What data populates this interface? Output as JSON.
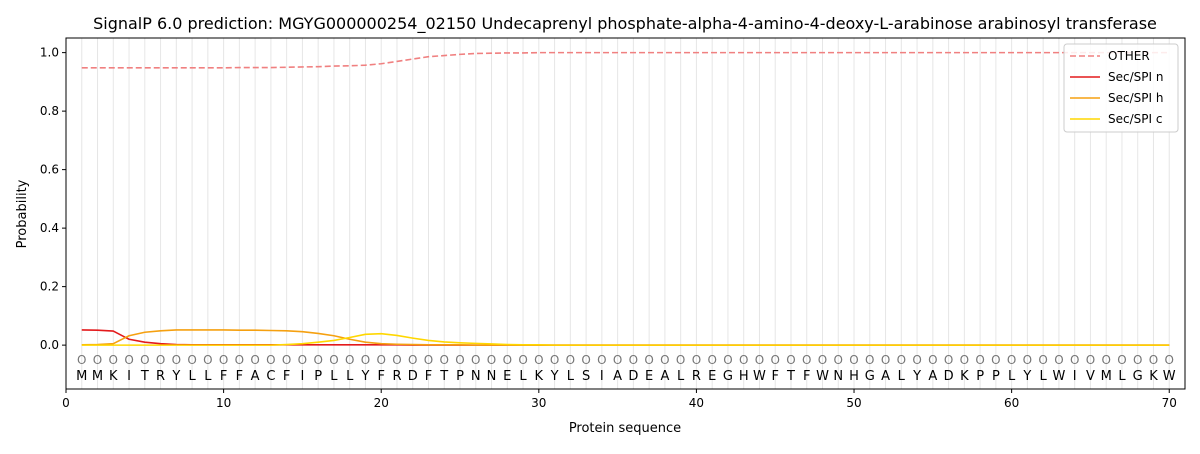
{
  "chart_data": {
    "type": "line",
    "title": "SignalP 6.0 prediction: MGYG000000254_02150 Undecaprenyl phosphate-alpha-4-amino-4-deoxy-L-arabinose arabinosyl transferase",
    "xlabel": "Protein sequence",
    "ylabel": "Probability",
    "xlim": [
      0,
      71
    ],
    "ylim": [
      -0.15,
      1.05
    ],
    "xticks": [
      0,
      10,
      20,
      30,
      40,
      50,
      60,
      70
    ],
    "yticks": [
      0.0,
      0.2,
      0.4,
      0.6,
      0.8,
      1.0
    ],
    "ytick_labels": [
      "0.0",
      "0.2",
      "0.4",
      "0.6",
      "0.8",
      "1.0"
    ],
    "grid": "vertical lines at each residue",
    "legend_position": "top-right",
    "sequence": "MMKITRYLLFFACFIPLLYFRDFTPNNELKYLSIADEALREGHWFTFWNHGALYADKPPLYLWIVMLGKW",
    "region_marker": "O",
    "x": [
      1,
      2,
      3,
      4,
      5,
      6,
      7,
      8,
      9,
      10,
      11,
      12,
      13,
      14,
      15,
      16,
      17,
      18,
      19,
      20,
      21,
      22,
      23,
      24,
      25,
      26,
      27,
      28,
      29,
      30,
      31,
      32,
      33,
      34,
      35,
      36,
      37,
      38,
      39,
      40,
      41,
      42,
      43,
      44,
      45,
      46,
      47,
      48,
      49,
      50,
      51,
      52,
      53,
      54,
      55,
      56,
      57,
      58,
      59,
      60,
      61,
      62,
      63,
      64,
      65,
      66,
      67,
      68,
      69,
      70
    ],
    "series": [
      {
        "name": "OTHER",
        "color": "#f08080",
        "dash": "dashed",
        "values": [
          0.948,
          0.948,
          0.948,
          0.948,
          0.948,
          0.948,
          0.948,
          0.948,
          0.948,
          0.948,
          0.949,
          0.949,
          0.949,
          0.95,
          0.951,
          0.952,
          0.954,
          0.955,
          0.957,
          0.962,
          0.97,
          0.978,
          0.986,
          0.99,
          0.994,
          0.997,
          0.998,
          0.999,
          0.999,
          1.0,
          1.0,
          1.0,
          1.0,
          1.0,
          1.0,
          1.0,
          1.0,
          1.0,
          1.0,
          1.0,
          1.0,
          1.0,
          1.0,
          1.0,
          1.0,
          1.0,
          1.0,
          1.0,
          1.0,
          1.0,
          1.0,
          1.0,
          1.0,
          1.0,
          1.0,
          1.0,
          1.0,
          1.0,
          1.0,
          1.0,
          1.0,
          1.0,
          1.0,
          1.0,
          1.0,
          1.0,
          1.0,
          1.0,
          1.0,
          1.0
        ]
      },
      {
        "name": "Sec/SPI n",
        "color": "#e31a1c",
        "dash": "solid",
        "values": [
          0.052,
          0.051,
          0.048,
          0.02,
          0.01,
          0.005,
          0.002,
          0.001,
          0.001,
          0.001,
          0.001,
          0.001,
          0.001,
          0.001,
          0.001,
          0.001,
          0.001,
          0.001,
          0.001,
          0.001,
          0.001,
          0.0,
          0.0,
          0.0,
          0.0,
          0.0,
          0.0,
          0.0,
          0.0,
          0.0,
          0.0,
          0.0,
          0.0,
          0.0,
          0.0,
          0.0,
          0.0,
          0.0,
          0.0,
          0.0,
          0.0,
          0.0,
          0.0,
          0.0,
          0.0,
          0.0,
          0.0,
          0.0,
          0.0,
          0.0,
          0.0,
          0.0,
          0.0,
          0.0,
          0.0,
          0.0,
          0.0,
          0.0,
          0.0,
          0.0,
          0.0,
          0.0,
          0.0,
          0.0,
          0.0,
          0.0,
          0.0,
          0.0,
          0.0,
          0.0
        ]
      },
      {
        "name": "Sec/SPI h",
        "color": "#f5a010",
        "dash": "solid",
        "values": [
          0.001,
          0.002,
          0.005,
          0.032,
          0.044,
          0.049,
          0.052,
          0.052,
          0.052,
          0.052,
          0.051,
          0.051,
          0.05,
          0.049,
          0.046,
          0.04,
          0.032,
          0.02,
          0.01,
          0.005,
          0.003,
          0.002,
          0.001,
          0.001,
          0.001,
          0.0,
          0.0,
          0.0,
          0.0,
          0.0,
          0.0,
          0.0,
          0.0,
          0.0,
          0.0,
          0.0,
          0.0,
          0.0,
          0.0,
          0.0,
          0.0,
          0.0,
          0.0,
          0.0,
          0.0,
          0.0,
          0.0,
          0.0,
          0.0,
          0.0,
          0.0,
          0.0,
          0.0,
          0.0,
          0.0,
          0.0,
          0.0,
          0.0,
          0.0,
          0.0,
          0.0,
          0.0,
          0.0,
          0.0,
          0.0,
          0.0,
          0.0,
          0.0,
          0.0,
          0.0
        ]
      },
      {
        "name": "Sec/SPI c",
        "color": "#ffd700",
        "dash": "solid",
        "values": [
          0.0,
          0.0,
          0.0,
          0.0,
          0.0,
          0.0,
          0.0,
          0.0,
          0.0,
          0.0,
          0.0,
          0.0,
          0.0,
          0.002,
          0.005,
          0.01,
          0.016,
          0.026,
          0.037,
          0.039,
          0.033,
          0.024,
          0.016,
          0.011,
          0.008,
          0.006,
          0.004,
          0.002,
          0.001,
          0.001,
          0.0,
          0.0,
          0.0,
          0.0,
          0.0,
          0.0,
          0.0,
          0.0,
          0.0,
          0.0,
          0.0,
          0.0,
          0.0,
          0.0,
          0.0,
          0.0,
          0.0,
          0.0,
          0.0,
          0.0,
          0.0,
          0.0,
          0.0,
          0.0,
          0.0,
          0.0,
          0.0,
          0.0,
          0.0,
          0.0,
          0.0,
          0.0,
          0.0,
          0.0,
          0.0,
          0.0,
          0.0,
          0.0,
          0.0,
          0.0
        ]
      }
    ]
  }
}
